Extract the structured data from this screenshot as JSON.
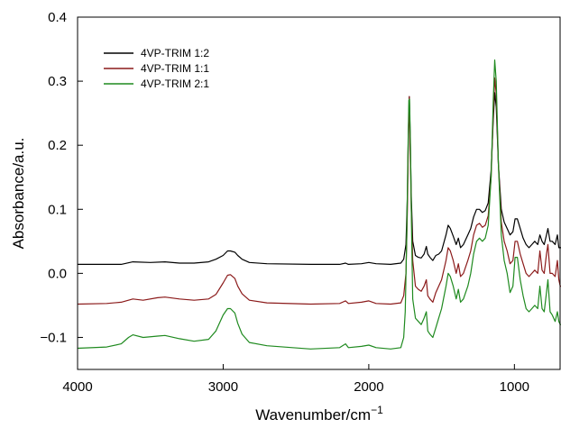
{
  "chart_data": {
    "type": "line",
    "xlabel": "Wavenumber/cm",
    "xlabel_sup": "−1",
    "ylabel": "Absorbance/a.u.",
    "xlim": [
      4000,
      680
    ],
    "ylim": [
      -0.15,
      0.4
    ],
    "x_reversed": true,
    "xticks": [
      {
        "value": 4000,
        "label": "4000"
      },
      {
        "value": 3000,
        "label": "3000"
      },
      {
        "value": 2000,
        "label": "2000"
      },
      {
        "value": 1000,
        "label": "1000"
      }
    ],
    "yticks": [
      {
        "value": -0.1,
        "label": "−0.1"
      },
      {
        "value": 0.0,
        "label": "0.0"
      },
      {
        "value": 0.1,
        "label": "0.1"
      },
      {
        "value": 0.2,
        "label": "0.2"
      },
      {
        "value": 0.3,
        "label": "0.3"
      },
      {
        "value": 0.4,
        "label": "0.4"
      }
    ],
    "grid": false,
    "legend_position": "top-left",
    "series": [
      {
        "name": "4VP-TRIM 1:2",
        "color": "#000000",
        "points": [
          [
            4000,
            0.014
          ],
          [
            3700,
            0.014
          ],
          [
            3620,
            0.018
          ],
          [
            3500,
            0.017
          ],
          [
            3400,
            0.018
          ],
          [
            3300,
            0.016
          ],
          [
            3200,
            0.016
          ],
          [
            3100,
            0.018
          ],
          [
            3050,
            0.022
          ],
          [
            3000,
            0.028
          ],
          [
            2970,
            0.035
          ],
          [
            2950,
            0.035
          ],
          [
            2920,
            0.033
          ],
          [
            2900,
            0.028
          ],
          [
            2870,
            0.022
          ],
          [
            2820,
            0.017
          ],
          [
            2700,
            0.015
          ],
          [
            2400,
            0.014
          ],
          [
            2200,
            0.014
          ],
          [
            2160,
            0.016
          ],
          [
            2140,
            0.014
          ],
          [
            2050,
            0.015
          ],
          [
            2000,
            0.017
          ],
          [
            1950,
            0.015
          ],
          [
            1850,
            0.014
          ],
          [
            1780,
            0.016
          ],
          [
            1760,
            0.022
          ],
          [
            1745,
            0.045
          ],
          [
            1735,
            0.12
          ],
          [
            1728,
            0.22
          ],
          [
            1722,
            0.276
          ],
          [
            1716,
            0.22
          ],
          [
            1708,
            0.12
          ],
          [
            1698,
            0.05
          ],
          [
            1680,
            0.028
          ],
          [
            1660,
            0.025
          ],
          [
            1640,
            0.024
          ],
          [
            1620,
            0.03
          ],
          [
            1605,
            0.042
          ],
          [
            1595,
            0.03
          ],
          [
            1580,
            0.025
          ],
          [
            1560,
            0.02
          ],
          [
            1540,
            0.028
          ],
          [
            1520,
            0.03
          ],
          [
            1500,
            0.035
          ],
          [
            1470,
            0.06
          ],
          [
            1455,
            0.075
          ],
          [
            1440,
            0.07
          ],
          [
            1420,
            0.058
          ],
          [
            1400,
            0.045
          ],
          [
            1385,
            0.055
          ],
          [
            1370,
            0.04
          ],
          [
            1350,
            0.045
          ],
          [
            1320,
            0.06
          ],
          [
            1300,
            0.07
          ],
          [
            1280,
            0.088
          ],
          [
            1260,
            0.1
          ],
          [
            1240,
            0.1
          ],
          [
            1220,
            0.095
          ],
          [
            1200,
            0.098
          ],
          [
            1180,
            0.11
          ],
          [
            1160,
            0.16
          ],
          [
            1145,
            0.24
          ],
          [
            1135,
            0.282
          ],
          [
            1125,
            0.26
          ],
          [
            1110,
            0.17
          ],
          [
            1090,
            0.1
          ],
          [
            1070,
            0.08
          ],
          [
            1050,
            0.07
          ],
          [
            1030,
            0.06
          ],
          [
            1010,
            0.065
          ],
          [
            995,
            0.085
          ],
          [
            980,
            0.085
          ],
          [
            960,
            0.07
          ],
          [
            940,
            0.055
          ],
          [
            920,
            0.045
          ],
          [
            900,
            0.04
          ],
          [
            880,
            0.045
          ],
          [
            860,
            0.05
          ],
          [
            840,
            0.045
          ],
          [
            825,
            0.06
          ],
          [
            810,
            0.05
          ],
          [
            795,
            0.045
          ],
          [
            780,
            0.06
          ],
          [
            770,
            0.07
          ],
          [
            755,
            0.05
          ],
          [
            740,
            0.05
          ],
          [
            720,
            0.045
          ],
          [
            705,
            0.06
          ],
          [
            695,
            0.04
          ],
          [
            685,
            0.04
          ],
          [
            680,
            0.04
          ]
        ]
      },
      {
        "name": "4VP-TRIM 1:1",
        "color": "#8b1a1a",
        "points": [
          [
            4000,
            -0.048
          ],
          [
            3800,
            -0.047
          ],
          [
            3700,
            -0.045
          ],
          [
            3620,
            -0.04
          ],
          [
            3550,
            -0.042
          ],
          [
            3450,
            -0.038
          ],
          [
            3400,
            -0.037
          ],
          [
            3300,
            -0.04
          ],
          [
            3200,
            -0.042
          ],
          [
            3100,
            -0.04
          ],
          [
            3050,
            -0.033
          ],
          [
            3000,
            -0.015
          ],
          [
            2970,
            -0.003
          ],
          [
            2950,
            -0.002
          ],
          [
            2920,
            -0.008
          ],
          [
            2900,
            -0.02
          ],
          [
            2870,
            -0.032
          ],
          [
            2820,
            -0.042
          ],
          [
            2700,
            -0.046
          ],
          [
            2400,
            -0.048
          ],
          [
            2200,
            -0.047
          ],
          [
            2160,
            -0.043
          ],
          [
            2140,
            -0.047
          ],
          [
            2050,
            -0.045
          ],
          [
            2000,
            -0.043
          ],
          [
            1950,
            -0.047
          ],
          [
            1850,
            -0.048
          ],
          [
            1780,
            -0.046
          ],
          [
            1760,
            -0.035
          ],
          [
            1745,
            0.0
          ],
          [
            1735,
            0.1
          ],
          [
            1728,
            0.21
          ],
          [
            1722,
            0.276
          ],
          [
            1716,
            0.2
          ],
          [
            1708,
            0.1
          ],
          [
            1698,
            0.02
          ],
          [
            1680,
            -0.02
          ],
          [
            1660,
            -0.025
          ],
          [
            1640,
            -0.028
          ],
          [
            1620,
            -0.02
          ],
          [
            1605,
            -0.01
          ],
          [
            1595,
            -0.035
          ],
          [
            1580,
            -0.04
          ],
          [
            1560,
            -0.045
          ],
          [
            1540,
            -0.03
          ],
          [
            1520,
            -0.02
          ],
          [
            1500,
            -0.01
          ],
          [
            1470,
            0.02
          ],
          [
            1455,
            0.04
          ],
          [
            1440,
            0.035
          ],
          [
            1420,
            0.02
          ],
          [
            1400,
            0.0
          ],
          [
            1385,
            0.015
          ],
          [
            1370,
            -0.005
          ],
          [
            1350,
            0.0
          ],
          [
            1320,
            0.02
          ],
          [
            1300,
            0.035
          ],
          [
            1280,
            0.06
          ],
          [
            1260,
            0.075
          ],
          [
            1240,
            0.078
          ],
          [
            1220,
            0.072
          ],
          [
            1200,
            0.075
          ],
          [
            1180,
            0.09
          ],
          [
            1160,
            0.15
          ],
          [
            1145,
            0.25
          ],
          [
            1135,
            0.305
          ],
          [
            1125,
            0.28
          ],
          [
            1110,
            0.17
          ],
          [
            1090,
            0.08
          ],
          [
            1070,
            0.05
          ],
          [
            1050,
            0.035
          ],
          [
            1030,
            0.015
          ],
          [
            1010,
            0.02
          ],
          [
            995,
            0.05
          ],
          [
            980,
            0.05
          ],
          [
            960,
            0.03
          ],
          [
            940,
            0.015
          ],
          [
            920,
            0.0
          ],
          [
            900,
            -0.005
          ],
          [
            880,
            0.0
          ],
          [
            860,
            0.005
          ],
          [
            840,
            0.0
          ],
          [
            825,
            0.035
          ],
          [
            810,
            0.005
          ],
          [
            795,
            0.0
          ],
          [
            780,
            0.03
          ],
          [
            770,
            0.045
          ],
          [
            755,
            0.0
          ],
          [
            740,
            0.0
          ],
          [
            720,
            -0.005
          ],
          [
            705,
            0.02
          ],
          [
            695,
            -0.01
          ],
          [
            685,
            -0.02
          ],
          [
            680,
            -0.02
          ]
        ]
      },
      {
        "name": "4VP-TRIM 2:1",
        "color": "#1f8a1f",
        "points": [
          [
            4000,
            -0.117
          ],
          [
            3800,
            -0.115
          ],
          [
            3700,
            -0.11
          ],
          [
            3650,
            -0.1
          ],
          [
            3620,
            -0.096
          ],
          [
            3550,
            -0.1
          ],
          [
            3450,
            -0.098
          ],
          [
            3400,
            -0.097
          ],
          [
            3300,
            -0.102
          ],
          [
            3200,
            -0.106
          ],
          [
            3100,
            -0.103
          ],
          [
            3050,
            -0.09
          ],
          [
            3000,
            -0.065
          ],
          [
            2970,
            -0.055
          ],
          [
            2950,
            -0.055
          ],
          [
            2920,
            -0.062
          ],
          [
            2900,
            -0.078
          ],
          [
            2870,
            -0.095
          ],
          [
            2820,
            -0.108
          ],
          [
            2700,
            -0.113
          ],
          [
            2400,
            -0.118
          ],
          [
            2200,
            -0.116
          ],
          [
            2160,
            -0.11
          ],
          [
            2140,
            -0.116
          ],
          [
            2050,
            -0.114
          ],
          [
            2000,
            -0.112
          ],
          [
            1950,
            -0.116
          ],
          [
            1850,
            -0.118
          ],
          [
            1780,
            -0.116
          ],
          [
            1760,
            -0.1
          ],
          [
            1750,
            -0.06
          ],
          [
            1740,
            0.05
          ],
          [
            1732,
            0.18
          ],
          [
            1725,
            0.27
          ],
          [
            1720,
            0.272
          ],
          [
            1714,
            0.2
          ],
          [
            1706,
            0.06
          ],
          [
            1698,
            -0.04
          ],
          [
            1680,
            -0.07
          ],
          [
            1660,
            -0.075
          ],
          [
            1640,
            -0.08
          ],
          [
            1620,
            -0.07
          ],
          [
            1605,
            -0.06
          ],
          [
            1595,
            -0.09
          ],
          [
            1580,
            -0.095
          ],
          [
            1560,
            -0.1
          ],
          [
            1540,
            -0.085
          ],
          [
            1520,
            -0.07
          ],
          [
            1500,
            -0.055
          ],
          [
            1470,
            -0.02
          ],
          [
            1455,
            0.0
          ],
          [
            1440,
            -0.005
          ],
          [
            1420,
            -0.02
          ],
          [
            1400,
            -0.04
          ],
          [
            1385,
            -0.025
          ],
          [
            1370,
            -0.045
          ],
          [
            1350,
            -0.04
          ],
          [
            1320,
            -0.02
          ],
          [
            1300,
            0.0
          ],
          [
            1280,
            0.03
          ],
          [
            1260,
            0.05
          ],
          [
            1240,
            0.055
          ],
          [
            1220,
            0.05
          ],
          [
            1200,
            0.055
          ],
          [
            1180,
            0.075
          ],
          [
            1160,
            0.15
          ],
          [
            1145,
            0.27
          ],
          [
            1135,
            0.333
          ],
          [
            1125,
            0.3
          ],
          [
            1110,
            0.17
          ],
          [
            1090,
            0.06
          ],
          [
            1070,
            0.02
          ],
          [
            1050,
            0.0
          ],
          [
            1030,
            -0.03
          ],
          [
            1010,
            -0.02
          ],
          [
            995,
            0.025
          ],
          [
            980,
            0.025
          ],
          [
            960,
            -0.01
          ],
          [
            940,
            -0.035
          ],
          [
            920,
            -0.055
          ],
          [
            900,
            -0.06
          ],
          [
            880,
            -0.055
          ],
          [
            860,
            -0.05
          ],
          [
            840,
            -0.055
          ],
          [
            825,
            -0.02
          ],
          [
            810,
            -0.055
          ],
          [
            795,
            -0.06
          ],
          [
            780,
            -0.03
          ],
          [
            770,
            -0.01
          ],
          [
            755,
            -0.06
          ],
          [
            740,
            -0.065
          ],
          [
            720,
            -0.075
          ],
          [
            705,
            -0.06
          ],
          [
            695,
            -0.075
          ],
          [
            685,
            -0.08
          ],
          [
            680,
            -0.08
          ]
        ]
      }
    ]
  }
}
